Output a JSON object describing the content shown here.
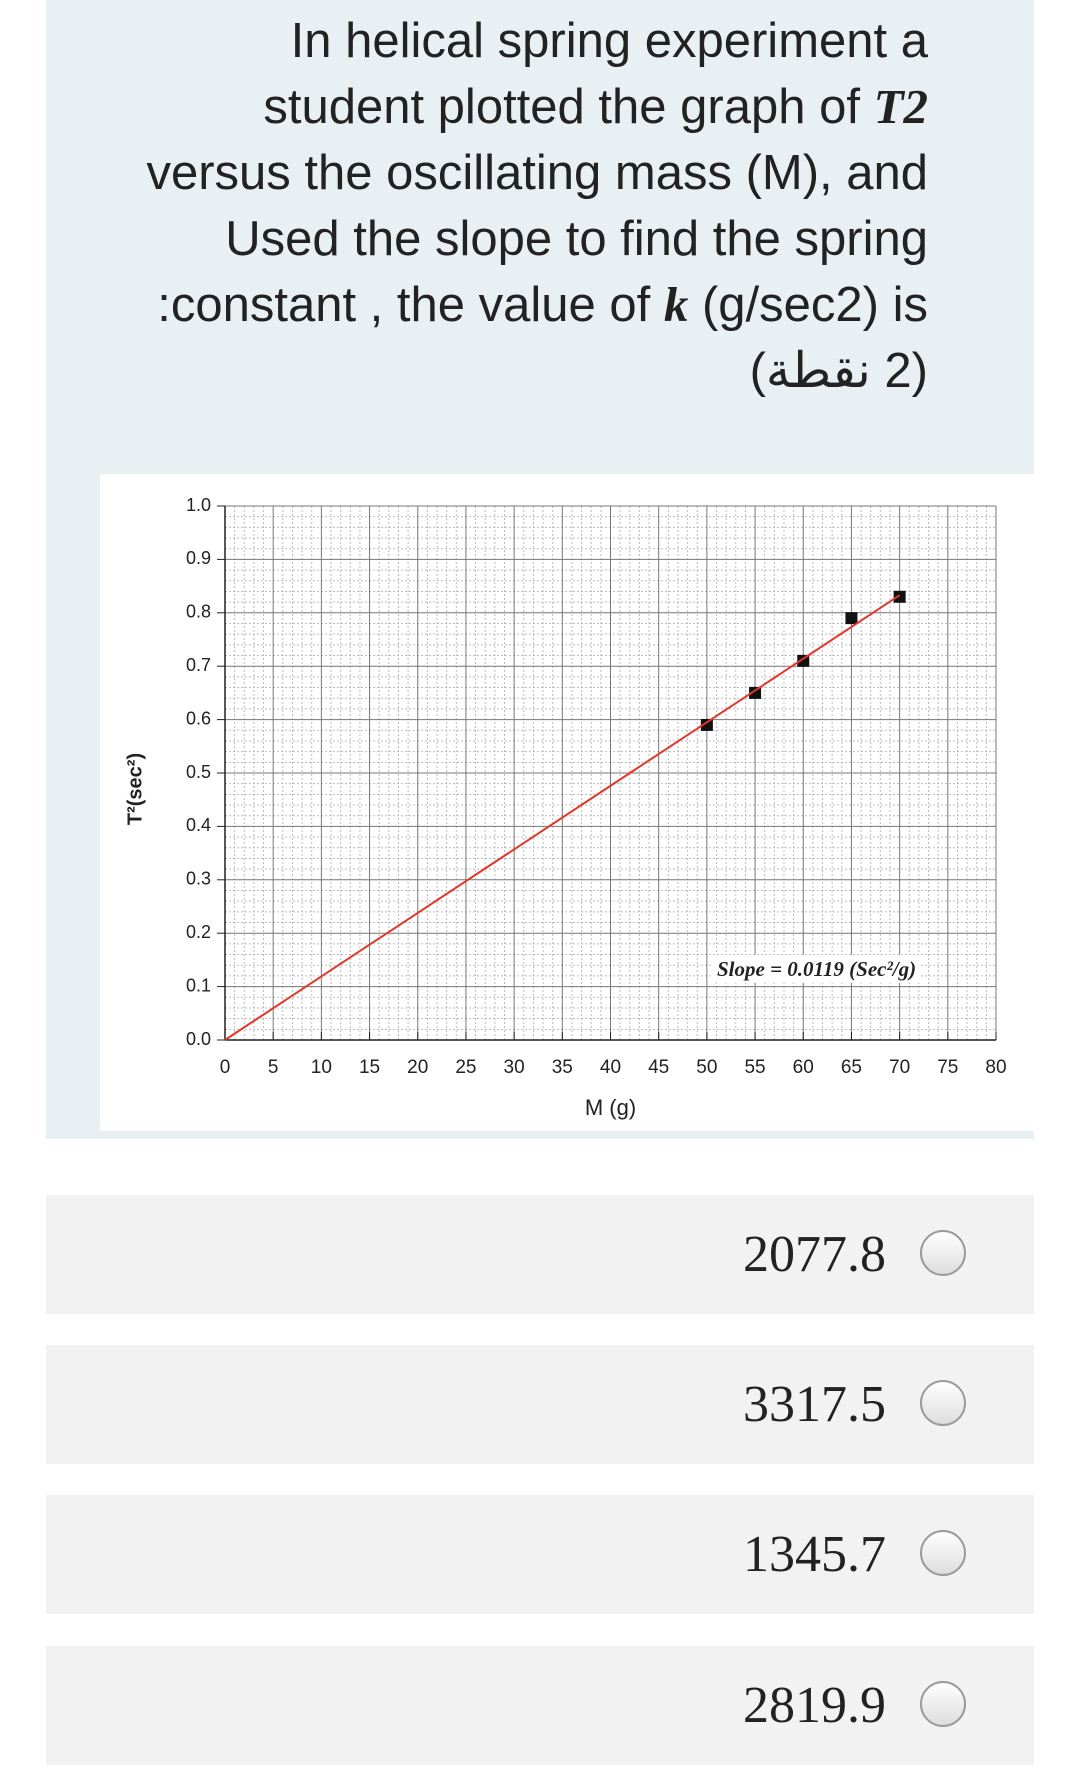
{
  "question": {
    "segments": [
      "In helical spring experiment a",
      "student  plotted the graph of ",
      "T2",
      "versus the oscillating mass (M), and",
      "Used the slope to find the spring",
      ":constant , the value of ",
      "k",
      " (g/sec2) is"
    ],
    "points": "(2 نقطة)"
  },
  "chart_data": {
    "type": "scatter",
    "x_label": "M (g)",
    "y_label": "T²(sec²)",
    "xlim": [
      0,
      80
    ],
    "ylim": [
      0,
      1
    ],
    "xticks": [
      0,
      5,
      10,
      15,
      20,
      25,
      30,
      35,
      40,
      45,
      50,
      55,
      60,
      65,
      70,
      75,
      80
    ],
    "yticks": [
      {
        "value": 0,
        "label": "0.0"
      },
      0.1,
      0.2,
      0.3,
      0.4,
      0.5,
      0.6,
      0.7,
      0.8,
      0.9,
      {
        "value": 1,
        "label": "1.0"
      }
    ],
    "grid": true,
    "series": [
      {
        "x": [
          50,
          55,
          60,
          65,
          70
        ],
        "values": [
          0.59,
          0.65,
          0.71,
          0.79,
          0.83
        ],
        "color": "#111111",
        "marker": "square"
      },
      {
        "x": [
          0,
          70
        ],
        "values": [
          0,
          0.833
        ],
        "color": "#e0392b",
        "mode": "line"
      }
    ],
    "annotation": "Slope = 0.0119 (Sec²/g)"
  },
  "options": [
    "2077.8",
    "3317.5",
    "1345.7",
    "2819.9"
  ]
}
